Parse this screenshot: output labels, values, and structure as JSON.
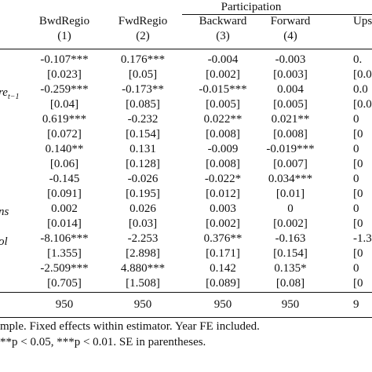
{
  "header": {
    "group": "Participation",
    "columns": [
      "BwdRegio",
      "FwdRegio",
      "Backward",
      "Forward",
      "Upstr"
    ],
    "numbers": [
      "(1)",
      "(2)",
      "(3)",
      "(4)"
    ]
  },
  "rows": [
    {
      "cells": [
        "-0.107***",
        "0.176***",
        "-0.004",
        "-0.003",
        "0."
      ]
    },
    {
      "cells": [
        "[0.023]",
        "[0.05]",
        "[0.002]",
        "[0.003]",
        "[0.0"
      ]
    },
    {
      "label": {
        "text": "re",
        "sub": "t−1"
      },
      "cells": [
        "-0.259***",
        "-0.173**",
        "-0.015***",
        "0.004",
        "0.0"
      ]
    },
    {
      "cells": [
        "[0.04]",
        "[0.085]",
        "[0.005]",
        "[0.005]",
        "[0.0"
      ]
    },
    {
      "cells": [
        "0.619***",
        "-0.232",
        "0.022**",
        "0.021**",
        "0"
      ]
    },
    {
      "cells": [
        "[0.072]",
        "[0.154]",
        "[0.008]",
        "[0.008]",
        "[0"
      ]
    },
    {
      "cells": [
        "0.140**",
        "0.131",
        "-0.009",
        "-0.019***",
        "0"
      ]
    },
    {
      "cells": [
        "[0.06]",
        "[0.128]",
        "[0.008]",
        "[0.007]",
        "[0"
      ]
    },
    {
      "cells": [
        "-0.145",
        "-0.026",
        "-0.022*",
        "0.034***",
        "0"
      ]
    },
    {
      "cells": [
        "[0.091]",
        "[0.195]",
        "[0.012]",
        "[0.01]",
        "[0"
      ]
    },
    {
      "label": {
        "text": "ns"
      },
      "cells": [
        "0.002",
        "0.026",
        "0.003",
        "0",
        "0"
      ]
    },
    {
      "cells": [
        "[0.014]",
        "[0.03]",
        "[0.002]",
        "[0.002]",
        "[0"
      ]
    },
    {
      "label": {
        "text": "ol"
      },
      "cells": [
        "-8.106***",
        "-2.253",
        "0.376**",
        "-0.163",
        "-1.3"
      ]
    },
    {
      "cells": [
        "[1.355]",
        "[2.898]",
        "[0.171]",
        "[0.154]",
        "[0"
      ]
    },
    {
      "cells": [
        "-2.509***",
        "4.880***",
        "0.142",
        "0.135*",
        "0"
      ]
    },
    {
      "cells": [
        "[0.705]",
        "[1.508]",
        "[0.089]",
        "[0.08]",
        "[0"
      ]
    }
  ],
  "n_row": [
    "950",
    "950",
    "950",
    "950",
    "9"
  ],
  "notes": [
    "mple. Fixed effects within estimator. Year FE included.",
    "**p < 0.05, ***p < 0.01. SE in parentheses."
  ]
}
